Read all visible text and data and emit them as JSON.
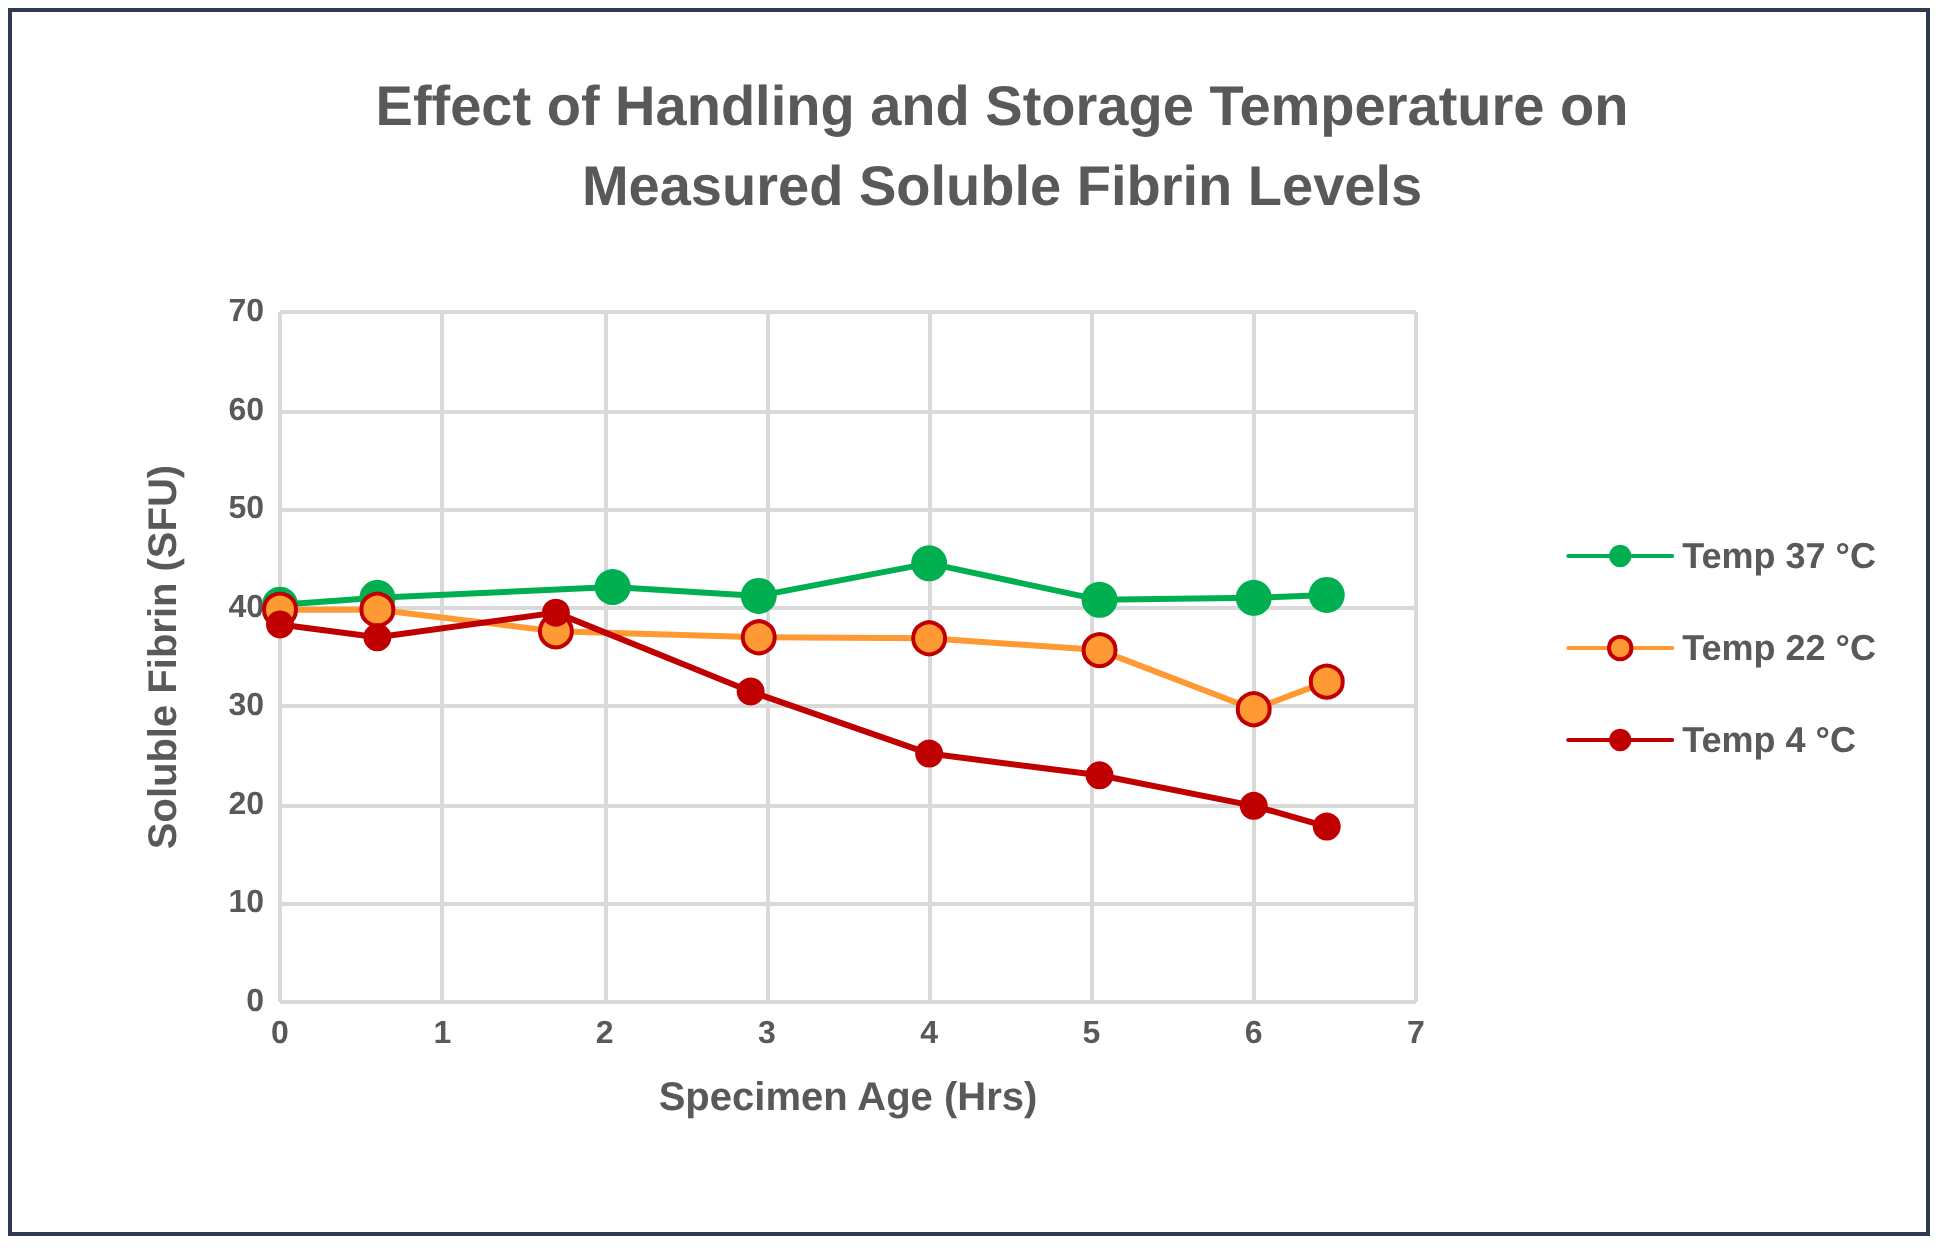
{
  "chart_data": {
    "type": "line",
    "title": "Effect of Handling and Storage Temperature on\nMeasured Soluble Fibrin Levels",
    "xlabel": "Specimen Age (Hrs)",
    "ylabel": "Soluble Fibrin (SFU)",
    "xlim": [
      0,
      7
    ],
    "xticks": [
      0,
      1,
      2,
      3,
      4,
      5,
      6,
      7
    ],
    "ylim": [
      0,
      70
    ],
    "yticks": [
      0,
      10,
      20,
      30,
      40,
      50,
      60,
      70
    ],
    "grid": true,
    "legend": "right",
    "marker": "circle",
    "line_style": "solid",
    "series": [
      {
        "name": "Temp 37 °C",
        "color": "#00b050",
        "x": [
          0,
          0.6,
          2.05,
          2.95,
          4.0,
          5.05,
          6.0,
          6.45
        ],
        "values": [
          40.3,
          41.0,
          42.1,
          41.2,
          44.5,
          40.8,
          41.0,
          41.3
        ]
      },
      {
        "name": "Temp 22 °C",
        "color": "#ff9933",
        "x": [
          0,
          0.6,
          1.7,
          2.95,
          4.0,
          5.05,
          6.0,
          6.45
        ],
        "values": [
          39.8,
          39.8,
          37.6,
          37.0,
          36.9,
          35.7,
          29.7,
          32.5
        ]
      },
      {
        "name": "Temp 4 °C",
        "color": "#c00000",
        "x": [
          0,
          0.6,
          1.7,
          2.9,
          4.0,
          5.05,
          6.0,
          6.45
        ],
        "values": [
          38.3,
          37.0,
          39.5,
          31.5,
          25.2,
          23.0,
          19.9,
          17.8
        ]
      }
    ]
  }
}
